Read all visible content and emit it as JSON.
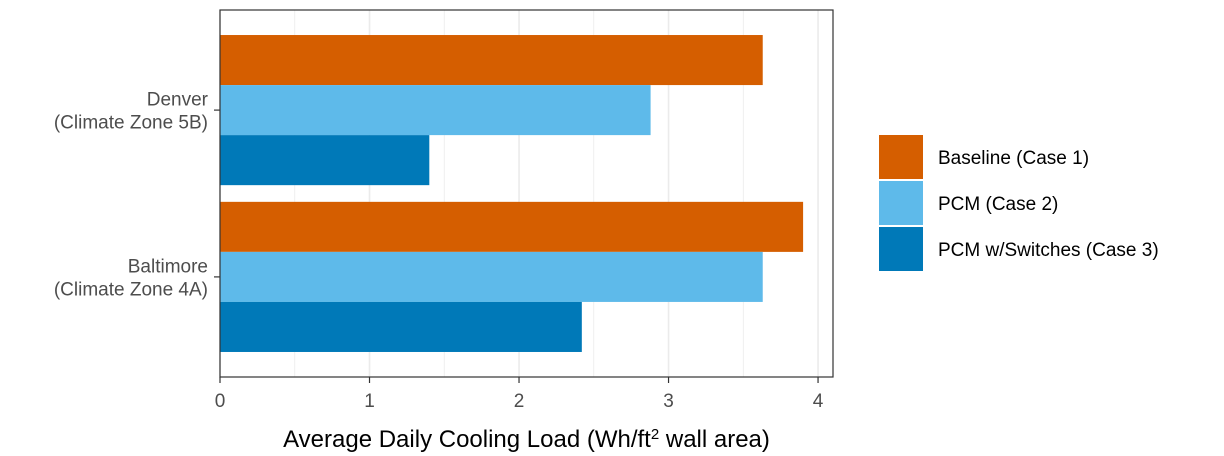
{
  "chart_data": {
    "type": "bar",
    "orientation": "horizontal",
    "categories": [
      [
        "Denver",
        "(Climate Zone 5B)"
      ],
      [
        "Baltimore",
        "(Climate Zone 4A)"
      ]
    ],
    "series": [
      {
        "name": "Baseline (Case 1)",
        "color": "#D55E00",
        "values": [
          3.63,
          3.9
        ]
      },
      {
        "name": "PCM (Case 2)",
        "color": "#5EBAEA",
        "values": [
          2.88,
          3.63
        ]
      },
      {
        "name": "PCM w/Switches (Case 3)",
        "color": "#0079B8",
        "values": [
          1.4,
          2.42
        ]
      }
    ],
    "xlabel": {
      "main": "Average Daily Cooling Load (Wh/ft",
      "sup": "2",
      "tail": " wall area)"
    },
    "xticks": [
      0,
      1,
      2,
      3,
      4
    ],
    "xlim": [
      0,
      4.1
    ],
    "grid": true,
    "legend_position": "right"
  }
}
